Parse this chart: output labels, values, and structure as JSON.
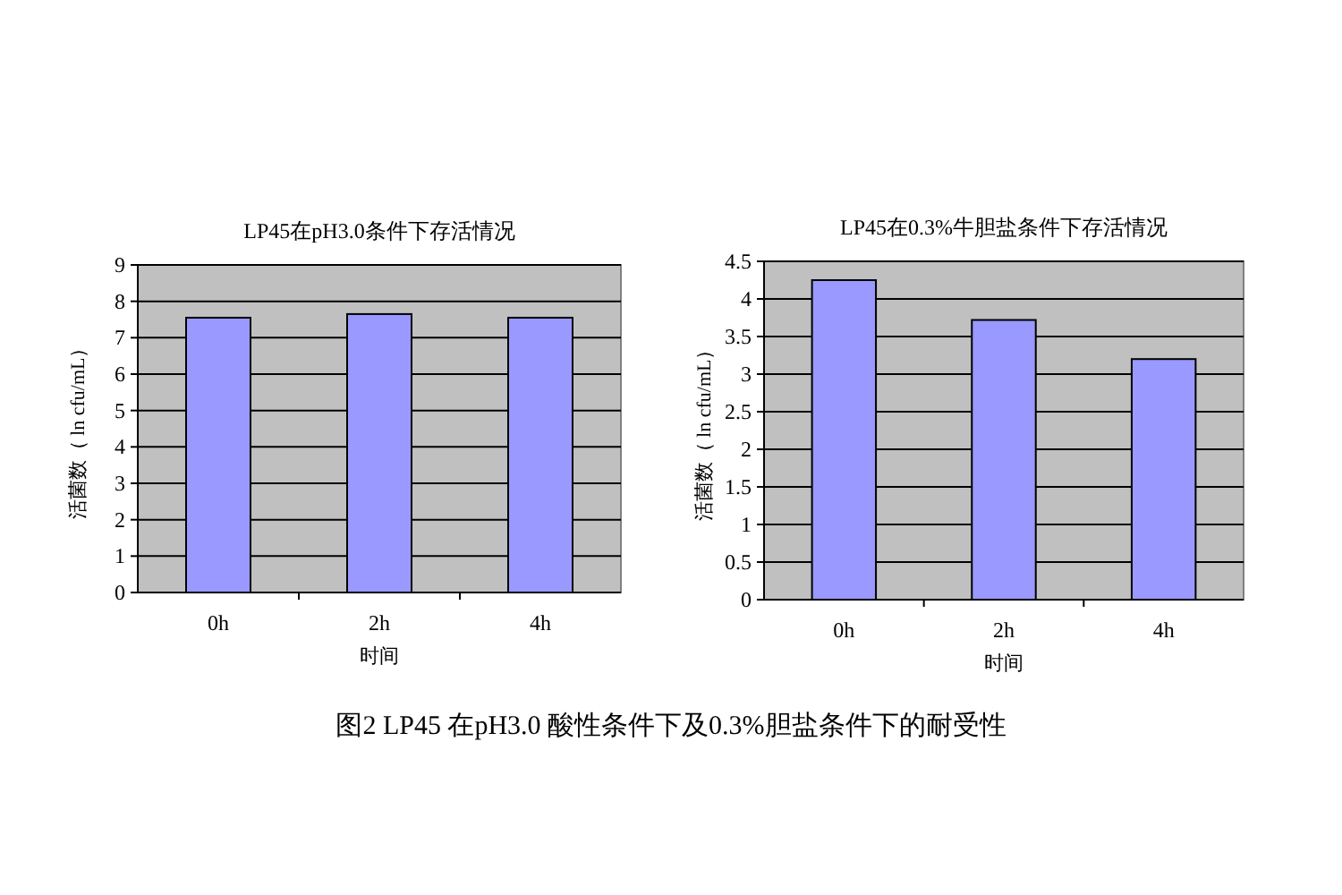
{
  "chart_data": [
    {
      "type": "bar",
      "title": "LP45在pH3.0条件下存活情况",
      "xlabel": "时间",
      "ylabel": "活菌数（ ln cfu/mL）",
      "categories": [
        "0h",
        "2h",
        "4h"
      ],
      "values": [
        7.55,
        7.65,
        7.55
      ],
      "color": "#9999ff",
      "ylim": [
        0,
        9
      ],
      "yticks": [
        0,
        1,
        2,
        3,
        4,
        5,
        6,
        7,
        8,
        9
      ],
      "grid": "y",
      "annotations": [
        "图2  LP45 在pH3.0 酸性条件下及0.3%胆盐条件下的耐受性"
      ]
    },
    {
      "type": "bar",
      "title": "LP45在0.3%牛胆盐条件下存活情况",
      "xlabel": "时间",
      "ylabel": "活菌数（ ln cfu/mL）",
      "categories": [
        "0h",
        "2h",
        "4h"
      ],
      "values": [
        4.25,
        3.72,
        3.2
      ],
      "color": "#9999ff",
      "ylim": [
        0,
        4.5
      ],
      "yticks": [
        0,
        0.5,
        1,
        1.5,
        2,
        2.5,
        3,
        3.5,
        4,
        4.5
      ],
      "grid": "y"
    }
  ]
}
